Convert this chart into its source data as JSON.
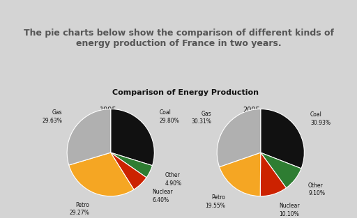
{
  "title_main": "The pie charts below show the comparison of different kinds of\nenergy production of France in two years.",
  "chart_title": "Comparison of Energy Production",
  "background_outer": "#d4d4d4",
  "background_inner": "#ffffff",
  "years": [
    "1995",
    "2005"
  ],
  "labels": [
    "Coal",
    "Other",
    "Nuclear",
    "Petro",
    "Gas"
  ],
  "values_1995": [
    29.8,
    4.9,
    6.4,
    29.27,
    29.63
  ],
  "values_2005": [
    30.93,
    9.1,
    10.1,
    19.55,
    30.31
  ],
  "colors": [
    "#111111",
    "#2e7d32",
    "#cc2200",
    "#f5a623",
    "#b0b0b0"
  ],
  "label_pcts_1995": [
    "29.80%",
    "4.90%",
    "6.40%",
    "29.27%",
    "29.63%"
  ],
  "label_pcts_2005": [
    "30.93%",
    "9.10%",
    "10.10%",
    "19.55%",
    "30.31%"
  ]
}
